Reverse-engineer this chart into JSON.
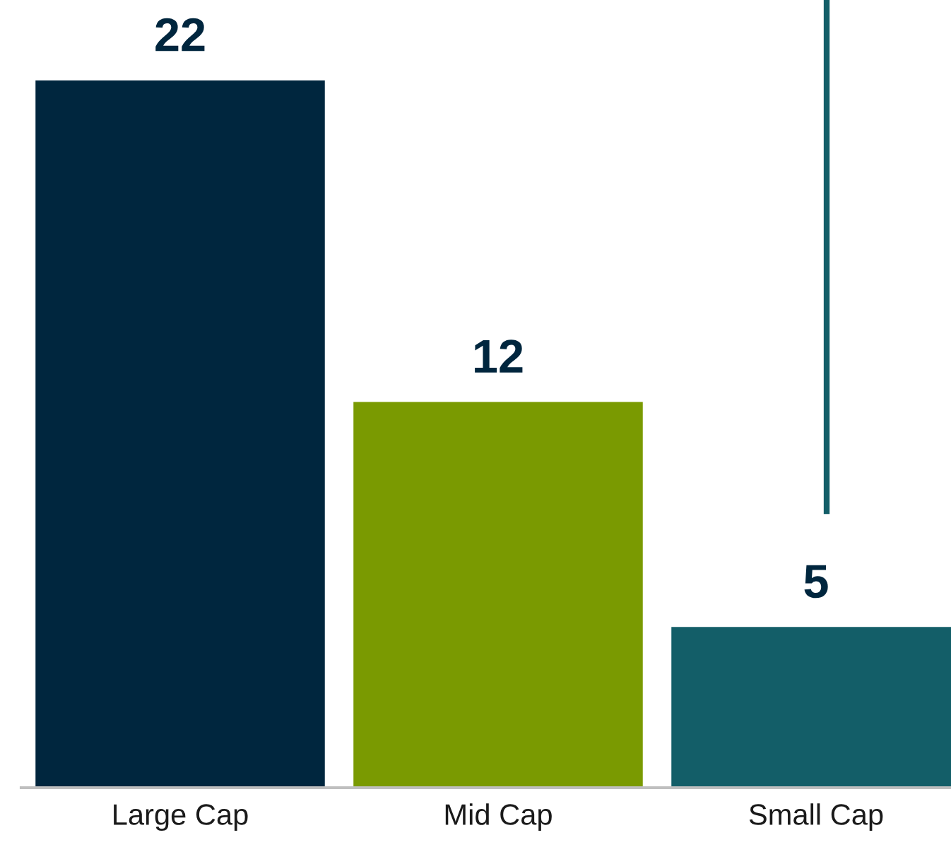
{
  "chart_data": {
    "type": "bar",
    "categories": [
      "Large Cap",
      "Mid Cap",
      "Small Cap"
    ],
    "values": [
      22,
      12,
      5
    ],
    "colors": [
      "#00263e",
      "#7a9a01",
      "#135e68"
    ],
    "ylim": [
      0,
      24.5
    ],
    "data_labels": true,
    "tick_labels": "x",
    "grid": false,
    "legend": false
  }
}
